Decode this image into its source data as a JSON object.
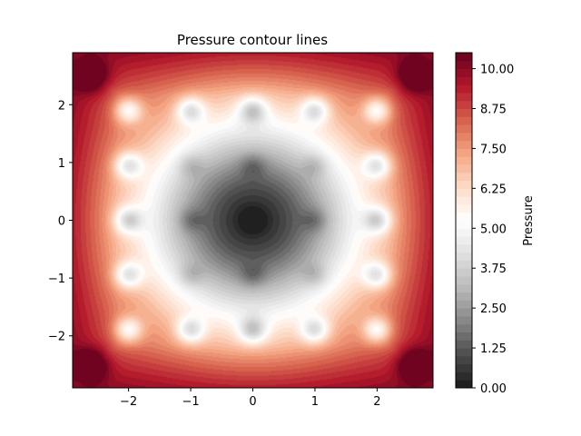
{
  "chart_data": {
    "type": "heatmap",
    "title": "Pressure contour lines",
    "xlabel": "",
    "ylabel": "",
    "xlim": [
      -2.9,
      2.9
    ],
    "ylim": [
      -2.9,
      2.9
    ],
    "xticks": [
      -2,
      -1,
      0,
      1,
      2
    ],
    "xtick_labels": [
      "−2",
      "−1",
      "0",
      "1",
      "2"
    ],
    "yticks": [
      -2,
      -1,
      0,
      1,
      2
    ],
    "ytick_labels": [
      "−2",
      "−1",
      "0",
      "1",
      "2"
    ],
    "grid": false,
    "colormap": "RdGy_r",
    "colorbar": {
      "label": "Pressure",
      "range": [
        0.0,
        10.5
      ],
      "levels": 42,
      "ticks": [
        0.0,
        1.25,
        2.5,
        3.75,
        5.0,
        6.25,
        7.5,
        8.75,
        10.0
      ],
      "tick_labels": [
        "0.00",
        "1.25",
        "2.50",
        "3.75",
        "5.00",
        "6.25",
        "7.50",
        "8.75",
        "10.00"
      ]
    },
    "field": {
      "description_function": "smooth radial pressure field: minimum ~0 at origin rising to ~10.5 at corners",
      "low_value_center": [
        0,
        0
      ],
      "minimum": 0.0,
      "maximum": 10.5,
      "corner_peaks": [
        [
          -2.6,
          2.5
        ],
        [
          2.6,
          2.5
        ],
        [
          -2.6,
          -2.5
        ],
        [
          2.6,
          -2.5
        ]
      ],
      "bright_spots": [
        [
          -2,
          1.9
        ],
        [
          -1,
          1.9
        ],
        [
          0,
          1.9
        ],
        [
          1,
          1.9
        ],
        [
          2,
          1.9
        ],
        [
          -2,
          0.95
        ],
        [
          2,
          0.95
        ],
        [
          -2,
          0
        ],
        [
          2,
          0
        ],
        [
          -2,
          -0.95
        ],
        [
          2,
          -0.95
        ],
        [
          -2,
          -1.9
        ],
        [
          -1,
          -1.9
        ],
        [
          0,
          -1.9
        ],
        [
          1,
          -1.9
        ],
        [
          2,
          -1.9
        ]
      ],
      "dark_spots": [
        [
          0,
          0
        ],
        [
          -1,
          0
        ],
        [
          1,
          0
        ],
        [
          0,
          0.95
        ],
        [
          0,
          -0.95
        ],
        [
          -1,
          0.95
        ],
        [
          1,
          0.95
        ],
        [
          -1,
          -0.95
        ],
        [
          1,
          -0.95
        ]
      ]
    }
  }
}
